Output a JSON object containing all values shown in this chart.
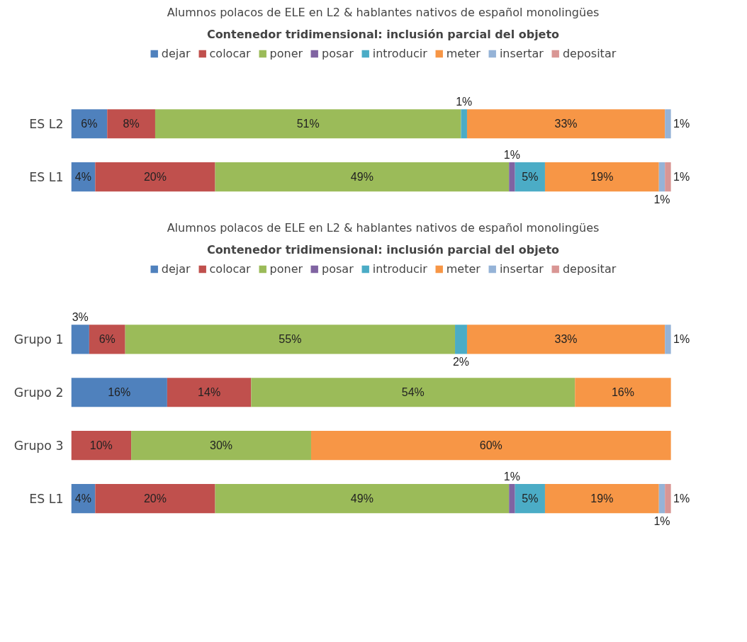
{
  "chart_data": [
    {
      "type": "bar",
      "orientation": "horizontal",
      "stacked": true,
      "title": "Alumnos polacos de ELE en L2 & hablantes nativos de español monolingües",
      "subtitle": "Contenedor tridimensional: inclusión parcial del objeto",
      "categories": [
        "ES L2",
        "ES L1"
      ],
      "legend": "top",
      "tick_labels": "y",
      "series": [
        {
          "name": "dejar",
          "color": "#4f81bd",
          "values": [
            6,
            4
          ],
          "value_labels": [
            "6%",
            "4%"
          ]
        },
        {
          "name": "colocar",
          "color": "#c0504d",
          "values": [
            8,
            20
          ],
          "value_labels": [
            "8%",
            "20%"
          ]
        },
        {
          "name": "poner",
          "color": "#9bbb59",
          "values": [
            51,
            49
          ],
          "value_labels": [
            "51%",
            "49%"
          ]
        },
        {
          "name": "posar",
          "color": "#8064a2",
          "values": [
            null,
            1
          ],
          "value_labels": [
            null,
            "1%"
          ]
        },
        {
          "name": "introducir",
          "color": "#4bacc6",
          "values": [
            1,
            5
          ],
          "value_labels": [
            "1%",
            "5%"
          ]
        },
        {
          "name": "meter",
          "color": "#f79646",
          "values": [
            33,
            19
          ],
          "value_labels": [
            "33%",
            "19%"
          ]
        },
        {
          "name": "insertar",
          "color": "#95b3d7",
          "values": [
            1,
            1
          ],
          "value_labels": [
            "1%",
            "1%"
          ]
        },
        {
          "name": "depositar",
          "color": "#d99694",
          "values": [
            null,
            1
          ],
          "value_labels": [
            null,
            "1%"
          ]
        }
      ]
    },
    {
      "type": "bar",
      "orientation": "horizontal",
      "stacked": true,
      "title": "Alumnos polacos de ELE en L2 & hablantes nativos de español monolingües",
      "subtitle": "Contenedor tridimensional: inclusión parcial del objeto",
      "categories": [
        "Grupo 1",
        "Grupo 2",
        "Grupo 3",
        "ES L1"
      ],
      "legend": "top",
      "tick_labels": "y",
      "series": [
        {
          "name": "dejar",
          "color": "#4f81bd",
          "values": [
            3,
            16,
            null,
            4
          ],
          "value_labels": [
            "3%",
            "16%",
            null,
            "4%"
          ]
        },
        {
          "name": "colocar",
          "color": "#c0504d",
          "values": [
            6,
            14,
            10,
            20
          ],
          "value_labels": [
            "6%",
            "14%",
            "10%",
            "20%"
          ]
        },
        {
          "name": "poner",
          "color": "#9bbb59",
          "values": [
            55,
            54,
            30,
            49
          ],
          "value_labels": [
            "55%",
            "54%",
            "30%",
            "49%"
          ]
        },
        {
          "name": "posar",
          "color": "#8064a2",
          "values": [
            null,
            null,
            null,
            1
          ],
          "value_labels": [
            null,
            null,
            null,
            "1%"
          ]
        },
        {
          "name": "introducir",
          "color": "#4bacc6",
          "values": [
            2,
            null,
            null,
            5
          ],
          "value_labels": [
            "2%",
            null,
            null,
            "5%"
          ]
        },
        {
          "name": "meter",
          "color": "#f79646",
          "values": [
            33,
            16,
            60,
            19
          ],
          "value_labels": [
            "33%",
            "16%",
            "60%",
            "19%"
          ]
        },
        {
          "name": "insertar",
          "color": "#95b3d7",
          "values": [
            1,
            null,
            null,
            1
          ],
          "value_labels": [
            "1%",
            null,
            null,
            "1%"
          ]
        },
        {
          "name": "depositar",
          "color": "#d99694",
          "values": [
            null,
            null,
            null,
            1
          ],
          "value_labels": [
            null,
            null,
            null,
            "1%"
          ]
        }
      ]
    }
  ]
}
